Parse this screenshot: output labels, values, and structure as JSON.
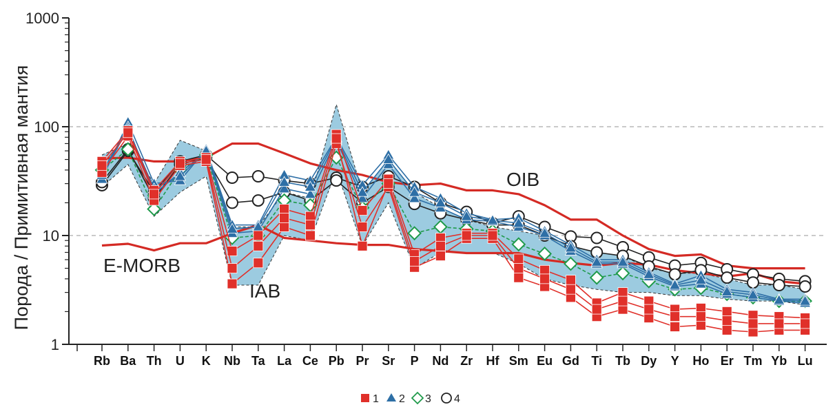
{
  "chart_data": {
    "type": "line",
    "title": "",
    "xlabel": "",
    "ylabel": "Порода / Примитивная мантия",
    "yscale": "log",
    "ylim": [
      1,
      1000
    ],
    "yticks": [
      "1",
      "10",
      "100",
      "1000"
    ],
    "grid": "dashed-horizontal",
    "categories": [
      "Rb",
      "Ba",
      "Th",
      "U",
      "K",
      "Nb",
      "Ta",
      "La",
      "Ce",
      "Pb",
      "Pr",
      "Sr",
      "P",
      "Nd",
      "Zr",
      "Hf",
      "Sm",
      "Eu",
      "Gd",
      "Ti",
      "Tb",
      "Dy",
      "Y",
      "Ho",
      "Er",
      "Tm",
      "Yb",
      "Lu"
    ],
    "colors": {
      "group1": "#e0302a",
      "group2": "#2e6fa6",
      "group3": "#1f9a4a",
      "group4": "#222222",
      "field": "#9ccbe0",
      "reference": "#d42a24"
    },
    "field": {
      "name": "IAB",
      "upper": [
        55,
        70,
        30,
        75,
        60,
        12,
        12,
        25,
        22,
        160,
        25,
        50,
        25,
        18,
        14,
        12,
        11,
        10,
        8,
        7,
        6.5,
        5,
        4.5,
        4.5,
        4,
        3.5,
        3.5,
        3.2
      ],
      "lower": [
        28,
        45,
        15,
        25,
        35,
        3.5,
        3.5,
        10,
        9,
        40,
        8,
        20,
        5,
        7,
        7,
        7,
        5.5,
        4,
        3.5,
        3.2,
        3,
        3,
        2.8,
        2.8,
        2.6,
        2.5,
        2.5,
        2.3
      ]
    },
    "reference_series": [
      {
        "name": "OIB",
        "values": [
          51,
          52,
          48,
          48,
          52,
          70,
          70,
          57,
          46,
          40,
          36,
          31,
          29,
          30,
          26,
          26,
          24,
          19,
          14,
          14,
          10,
          7.5,
          6.5,
          6.7,
          5.3,
          5,
          5,
          5
        ]
      },
      {
        "name": "E-MORB",
        "values": [
          8.1,
          8.4,
          7.3,
          8.5,
          8.5,
          10.5,
          12.5,
          9.5,
          9,
          8.5,
          8.2,
          8.2,
          7.5,
          7.2,
          6.9,
          6.9,
          6.9,
          6,
          5.6,
          5.3,
          5.6,
          5.4,
          4.8,
          4.5,
          4.2,
          4.5,
          3.8,
          3.6
        ]
      }
    ],
    "series": [
      {
        "name": "1",
        "marker": "filled-square",
        "lines": [
          [
            48,
            92,
            26,
            48,
            52,
            7.2,
            10,
            17.5,
            15,
            85,
            17,
            33,
            6.7,
            9.5,
            10.5,
            10.5,
            6.1,
            4.8,
            3.9,
            2.4,
            3,
            2.5,
            2.1,
            2.15,
            2,
            1.85,
            1.8,
            1.75
          ],
          [
            38,
            82,
            21,
            44,
            48,
            3.6,
            5.6,
            12,
            10,
            70,
            12,
            28,
            5.1,
            6.5,
            9.4,
            9.4,
            4.1,
            3.4,
            2.7,
            1.8,
            2.1,
            1.75,
            1.45,
            1.5,
            1.35,
            1.3,
            1.35,
            1.35
          ],
          [
            44,
            88,
            24,
            46,
            50,
            5,
            8,
            14.5,
            12.5,
            78,
            8,
            30,
            5.8,
            8,
            10,
            10,
            5,
            4,
            3.2,
            2.1,
            2.5,
            2.1,
            1.8,
            1.8,
            1.65,
            1.55,
            1.55,
            1.55
          ]
        ]
      },
      {
        "name": "2",
        "marker": "filled-triangle",
        "lines": [
          [
            33,
            110,
            30,
            32,
            62,
            12.5,
            12.5,
            36,
            32,
            80,
            29,
            55,
            28,
            22,
            16,
            14,
            14.5,
            11,
            8.2,
            6,
            6,
            4.6,
            3.6,
            4.3,
            3.2,
            3,
            2.6,
            2.6
          ],
          [
            38,
            100,
            24,
            38,
            58,
            10.5,
            11,
            27,
            24,
            75,
            22,
            45,
            22,
            18,
            14,
            13.5,
            12,
            10,
            7.2,
            5.5,
            5.5,
            4.2,
            3.4,
            3.6,
            2.9,
            2.7,
            2.5,
            2.4
          ],
          [
            36,
            95,
            27,
            35,
            60,
            11.5,
            12,
            31,
            28,
            78,
            25,
            50,
            25,
            20,
            15,
            13.8,
            13,
            10.5,
            7.7,
            5.7,
            5.7,
            4.4,
            3.5,
            3.9,
            3.05,
            2.85,
            2.55,
            2.5
          ]
        ]
      },
      {
        "name": "3",
        "marker": "open-diamond",
        "lines": [
          [
            40,
            62,
            17.5,
            40,
            55,
            9.5,
            10,
            21,
            19,
            52,
            18,
            30,
            10.5,
            12,
            11.5,
            11,
            8.3,
            6.8,
            5.5,
            4.1,
            4.5,
            3.8,
            3.2,
            3.3,
            2.9,
            2.7,
            2.5,
            2.5
          ]
        ]
      },
      {
        "name": "4",
        "marker": "open-circle",
        "lines": [
          [
            29,
            60,
            25,
            48,
            55,
            34,
            35,
            32,
            30,
            34,
            28,
            35,
            28,
            20,
            16.5,
            13,
            15,
            12,
            9.8,
            9.5,
            7.8,
            6.3,
            5.3,
            5.6,
            4.9,
            4.4,
            4,
            3.8
          ],
          [
            31,
            62,
            22,
            45,
            52,
            20,
            21,
            25,
            21,
            32,
            20,
            28,
            19.5,
            16,
            14,
            12.5,
            12.5,
            10,
            8,
            7,
            6.5,
            5.2,
            4.4,
            4.8,
            4.1,
            3.7,
            3.5,
            3.4
          ]
        ]
      }
    ],
    "annotations": [
      "OIB",
      "E-MORB",
      "IAB"
    ],
    "legend": {
      "placement": "bottom-center",
      "items": [
        "1",
        "2",
        "3",
        "4"
      ]
    }
  }
}
